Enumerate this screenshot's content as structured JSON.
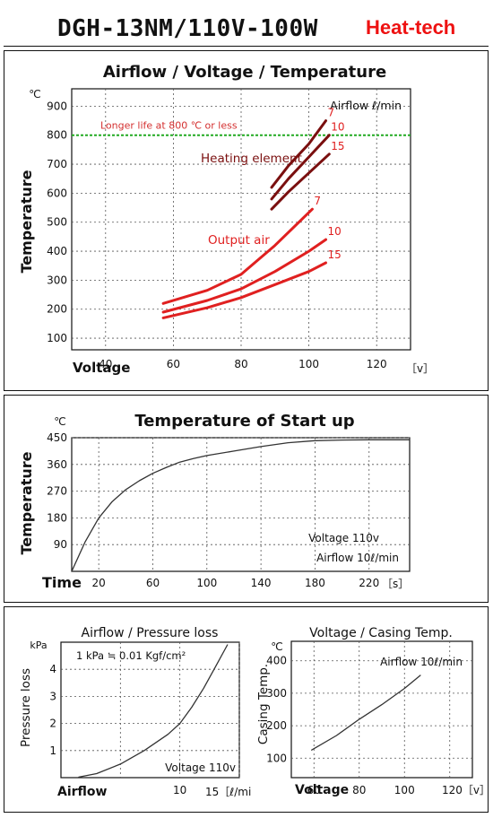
{
  "header": {
    "model": "DGH-13NM/110V-100W",
    "brand": "Heat-tech"
  },
  "chart_data": [
    {
      "type": "line",
      "title": "Airflow / Voltage / Temperature",
      "xlabel": "Voltage",
      "ylabel": "Temperature",
      "y_unit": "℃",
      "x_unit": "［v］",
      "xlim": [
        30,
        130
      ],
      "ylim": [
        60,
        960
      ],
      "x_ticks": [
        40,
        60,
        80,
        100,
        120
      ],
      "y_ticks": [
        100,
        200,
        300,
        400,
        500,
        600,
        700,
        800,
        900
      ],
      "legend_title": "Airflow ℓ/min",
      "reference_line": {
        "y": 800,
        "label": "Longer life at 800 ℃ or less",
        "color": "#22aa22"
      },
      "group_labels": {
        "heating": "Heating element",
        "output": "Output air"
      },
      "series": [
        {
          "name": "7",
          "group": "heating",
          "color": "#7a0f0f",
          "x": [
            89,
            94,
            100,
            105
          ],
          "y": [
            620,
            695,
            770,
            850
          ]
        },
        {
          "name": "10",
          "group": "heating",
          "color": "#7a0f0f",
          "x": [
            89,
            94,
            100,
            106
          ],
          "y": [
            580,
            650,
            725,
            800
          ]
        },
        {
          "name": "15",
          "group": "heating",
          "color": "#7a0f0f",
          "x": [
            89,
            94,
            100,
            106
          ],
          "y": [
            545,
            605,
            670,
            735
          ]
        },
        {
          "name": "7",
          "group": "output",
          "color": "#e02020",
          "x": [
            57,
            70,
            80,
            90,
            101
          ],
          "y": [
            220,
            265,
            320,
            420,
            545
          ]
        },
        {
          "name": "10",
          "group": "output",
          "color": "#e02020",
          "x": [
            57,
            70,
            80,
            90,
            100,
            105
          ],
          "y": [
            190,
            230,
            270,
            330,
            400,
            440
          ]
        },
        {
          "name": "15",
          "group": "output",
          "color": "#e02020",
          "x": [
            57,
            70,
            80,
            90,
            100,
            105
          ],
          "y": [
            170,
            205,
            240,
            285,
            330,
            360
          ]
        }
      ]
    },
    {
      "type": "line",
      "title": "Temperature of Start up",
      "xlabel": "Time",
      "ylabel": "Temperature",
      "y_unit": "℃",
      "x_unit": "［s］",
      "xlim": [
        0,
        250
      ],
      "ylim": [
        0,
        450
      ],
      "x_ticks": [
        20,
        60,
        100,
        140,
        180,
        220
      ],
      "y_ticks": [
        90,
        180,
        270,
        360,
        450
      ],
      "annotations": [
        "Voltage 110v",
        "Airflow 10ℓ/min"
      ],
      "series": [
        {
          "name": "",
          "color": "#333333",
          "x": [
            0,
            10,
            20,
            30,
            40,
            50,
            60,
            70,
            80,
            90,
            100,
            120,
            140,
            160,
            180,
            200,
            220,
            250
          ],
          "y": [
            0,
            100,
            180,
            235,
            275,
            305,
            330,
            350,
            368,
            380,
            390,
            405,
            420,
            433,
            440,
            442,
            443,
            443
          ]
        }
      ]
    },
    {
      "type": "line",
      "title": "Airflow / Pressure loss",
      "xlabel": "Airflow",
      "ylabel": "Pressure loss",
      "y_unit": "kPa",
      "x_unit": "15［ℓ/min］",
      "xlim": [
        0,
        15
      ],
      "ylim": [
        0,
        5
      ],
      "x_ticks": [
        5,
        10,
        15
      ],
      "x_tick_labels": [
        "",
        "10",
        ""
      ],
      "y_ticks": [
        1,
        2,
        3,
        4
      ],
      "annotations": [
        "1 kPa ≒ 0.01 Kgf/cm²",
        "Voltage 110v"
      ],
      "series": [
        {
          "name": "",
          "color": "#333333",
          "x": [
            1.5,
            3,
            5,
            7,
            9,
            10,
            11,
            12,
            13,
            14
          ],
          "y": [
            0.02,
            0.15,
            0.5,
            1.0,
            1.6,
            2.0,
            2.6,
            3.3,
            4.1,
            4.9
          ]
        }
      ]
    },
    {
      "type": "line",
      "title": "Voltage / Casing Temp.",
      "xlabel": "Voltage",
      "ylabel": "Casing Temp.",
      "y_unit": "℃",
      "x_unit": "120［v］",
      "xlim": [
        50,
        130
      ],
      "ylim": [
        40,
        460
      ],
      "x_ticks": [
        60,
        80,
        100,
        120
      ],
      "x_tick_labels": [
        "60",
        "80",
        "100",
        ""
      ],
      "y_ticks": [
        100,
        200,
        300,
        400
      ],
      "annotations": [
        "Airflow 10ℓ/min"
      ],
      "series": [
        {
          "name": "",
          "color": "#333333",
          "x": [
            59,
            70,
            80,
            90,
            100,
            107
          ],
          "y": [
            125,
            170,
            220,
            265,
            315,
            355
          ]
        }
      ]
    }
  ]
}
